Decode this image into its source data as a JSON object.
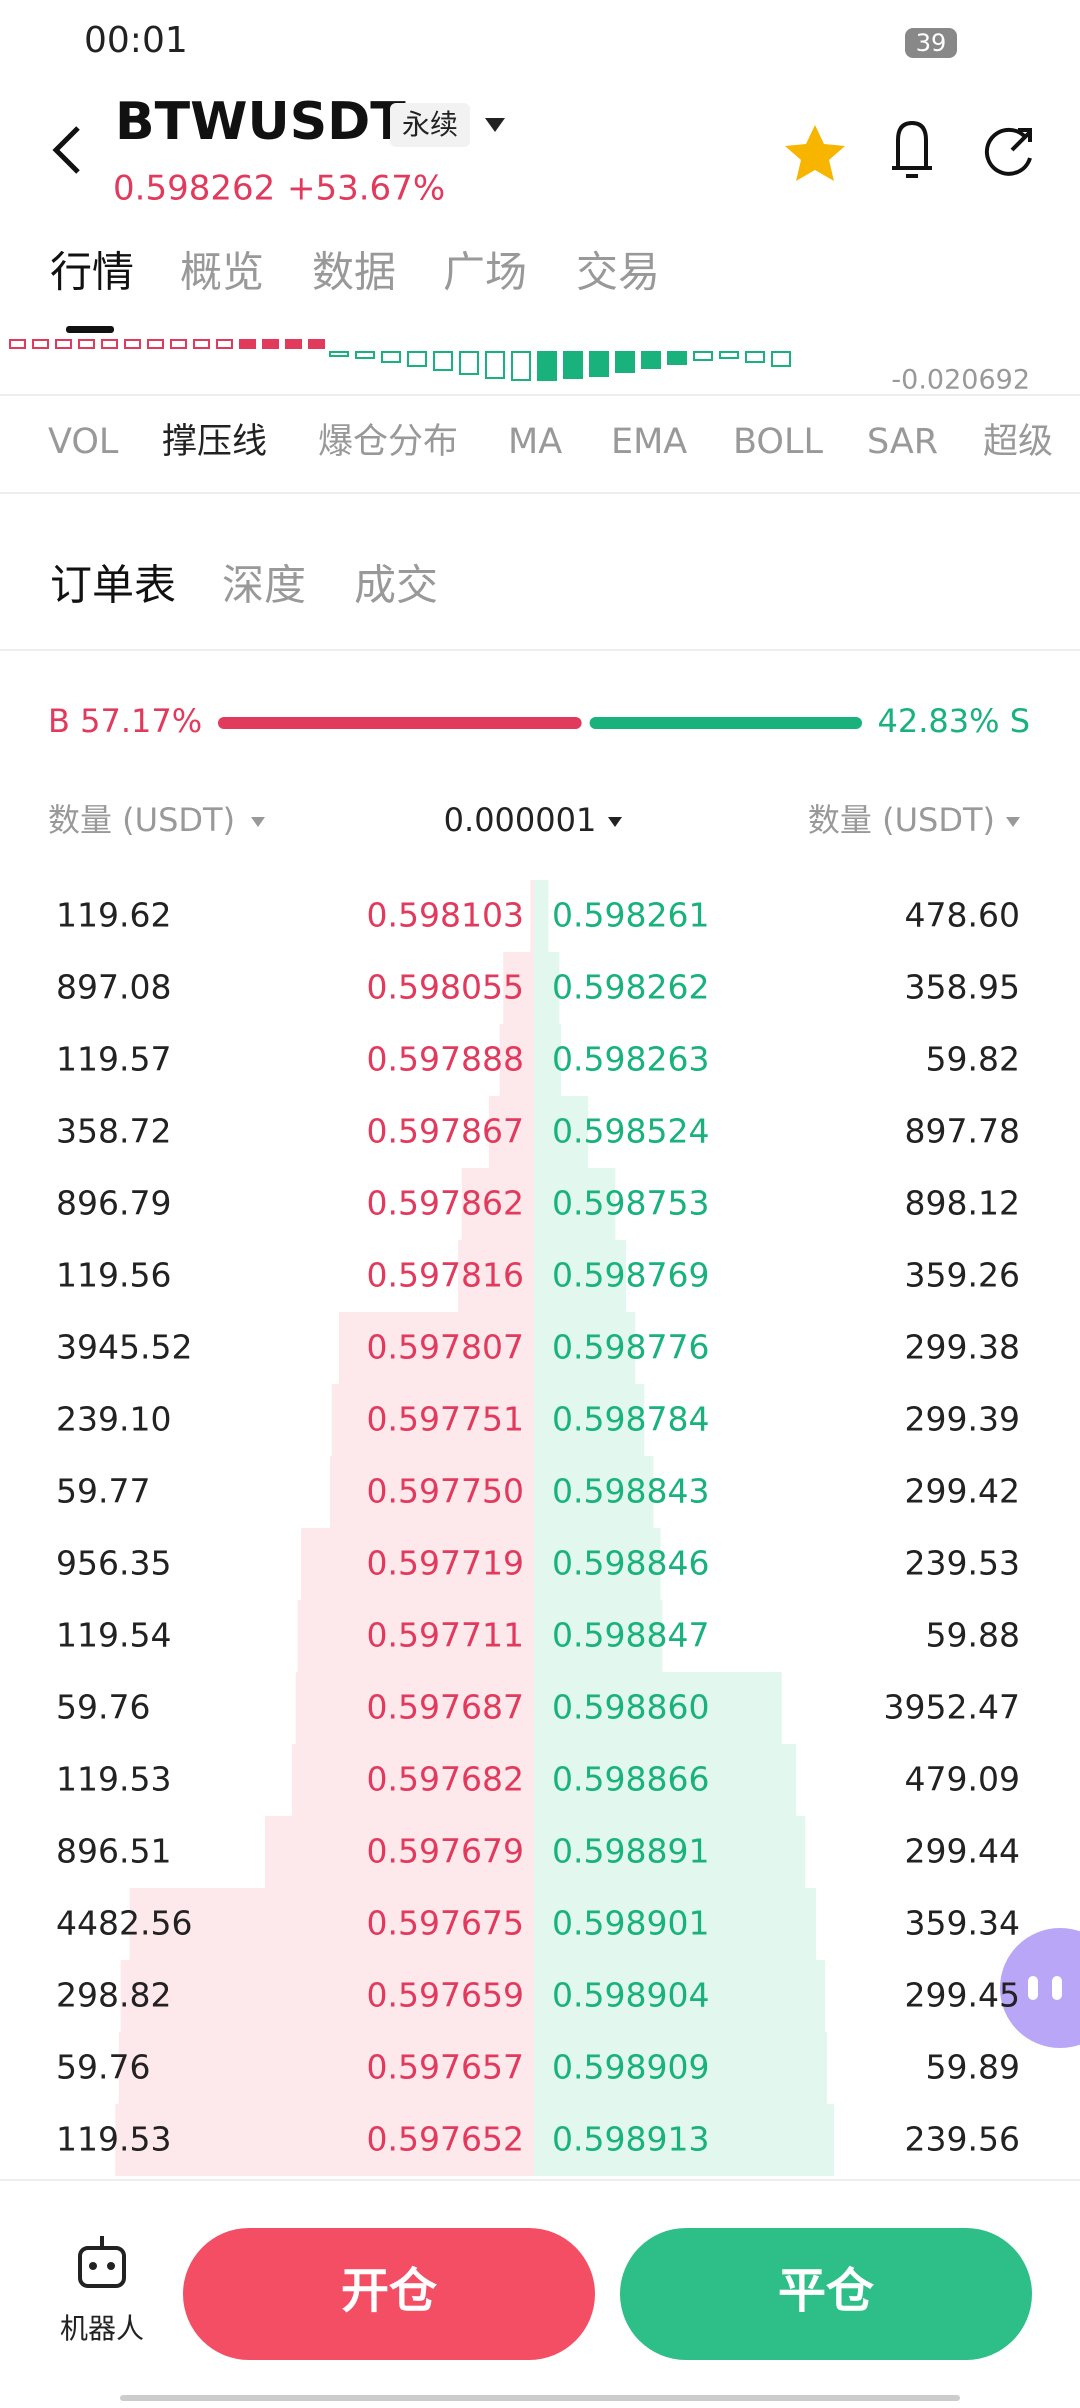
{
  "status_bar": {
    "time": "00:01",
    "battery": "39"
  },
  "header": {
    "symbol": "BTWUSDT",
    "contract_type": "永续",
    "price": "0.598262",
    "change": "+53.67%"
  },
  "main_tabs": [
    "行情",
    "概览",
    "数据",
    "广场",
    "交易"
  ],
  "chart": {
    "axis_label": "-0.020692"
  },
  "indicator_tabs": [
    "VOL",
    "撑压线",
    "爆仓分布",
    "MA",
    "EMA",
    "BOLL",
    "SAR",
    "超级"
  ],
  "book_tabs": [
    "订单表",
    "深度",
    "成交"
  ],
  "ratio": {
    "buy_label": "B 57.17%",
    "buy_share": 57.17,
    "sell_label": "42.83% S",
    "sell_share": 42.83
  },
  "columns": {
    "left": "数量 (USDT)",
    "precision": "0.000001",
    "right": "数量 (USDT)"
  },
  "rows": [
    [
      "119.62",
      "0.598103",
      "0.598261",
      "478.60"
    ],
    [
      "897.08",
      "0.598055",
      "0.598262",
      "358.95"
    ],
    [
      "119.57",
      "0.597888",
      "0.598263",
      "59.82"
    ],
    [
      "358.72",
      "0.597867",
      "0.598524",
      "897.78"
    ],
    [
      "896.79",
      "0.597862",
      "0.598753",
      "898.12"
    ],
    [
      "119.56",
      "0.597816",
      "0.598769",
      "359.26"
    ],
    [
      "3945.52",
      "0.597807",
      "0.598776",
      "299.38"
    ],
    [
      "239.10",
      "0.597751",
      "0.598784",
      "299.39"
    ],
    [
      "59.77",
      "0.597750",
      "0.598843",
      "299.42"
    ],
    [
      "956.35",
      "0.597719",
      "0.598846",
      "239.53"
    ],
    [
      "119.54",
      "0.597711",
      "0.598847",
      "59.88"
    ],
    [
      "59.76",
      "0.597687",
      "0.598860",
      "3952.47"
    ],
    [
      "119.53",
      "0.597682",
      "0.598866",
      "479.09"
    ],
    [
      "896.51",
      "0.597679",
      "0.598891",
      "299.44"
    ],
    [
      "4482.56",
      "0.597675",
      "0.598901",
      "359.34"
    ],
    [
      "298.82",
      "0.597659",
      "0.598904",
      "299.45"
    ],
    [
      "59.76",
      "0.597657",
      "0.598909",
      "59.89"
    ],
    [
      "119.53",
      "0.597652",
      "0.598913",
      "239.56"
    ]
  ],
  "bottom": {
    "robot": "机器人",
    "open": "开仓",
    "close": "平仓"
  }
}
